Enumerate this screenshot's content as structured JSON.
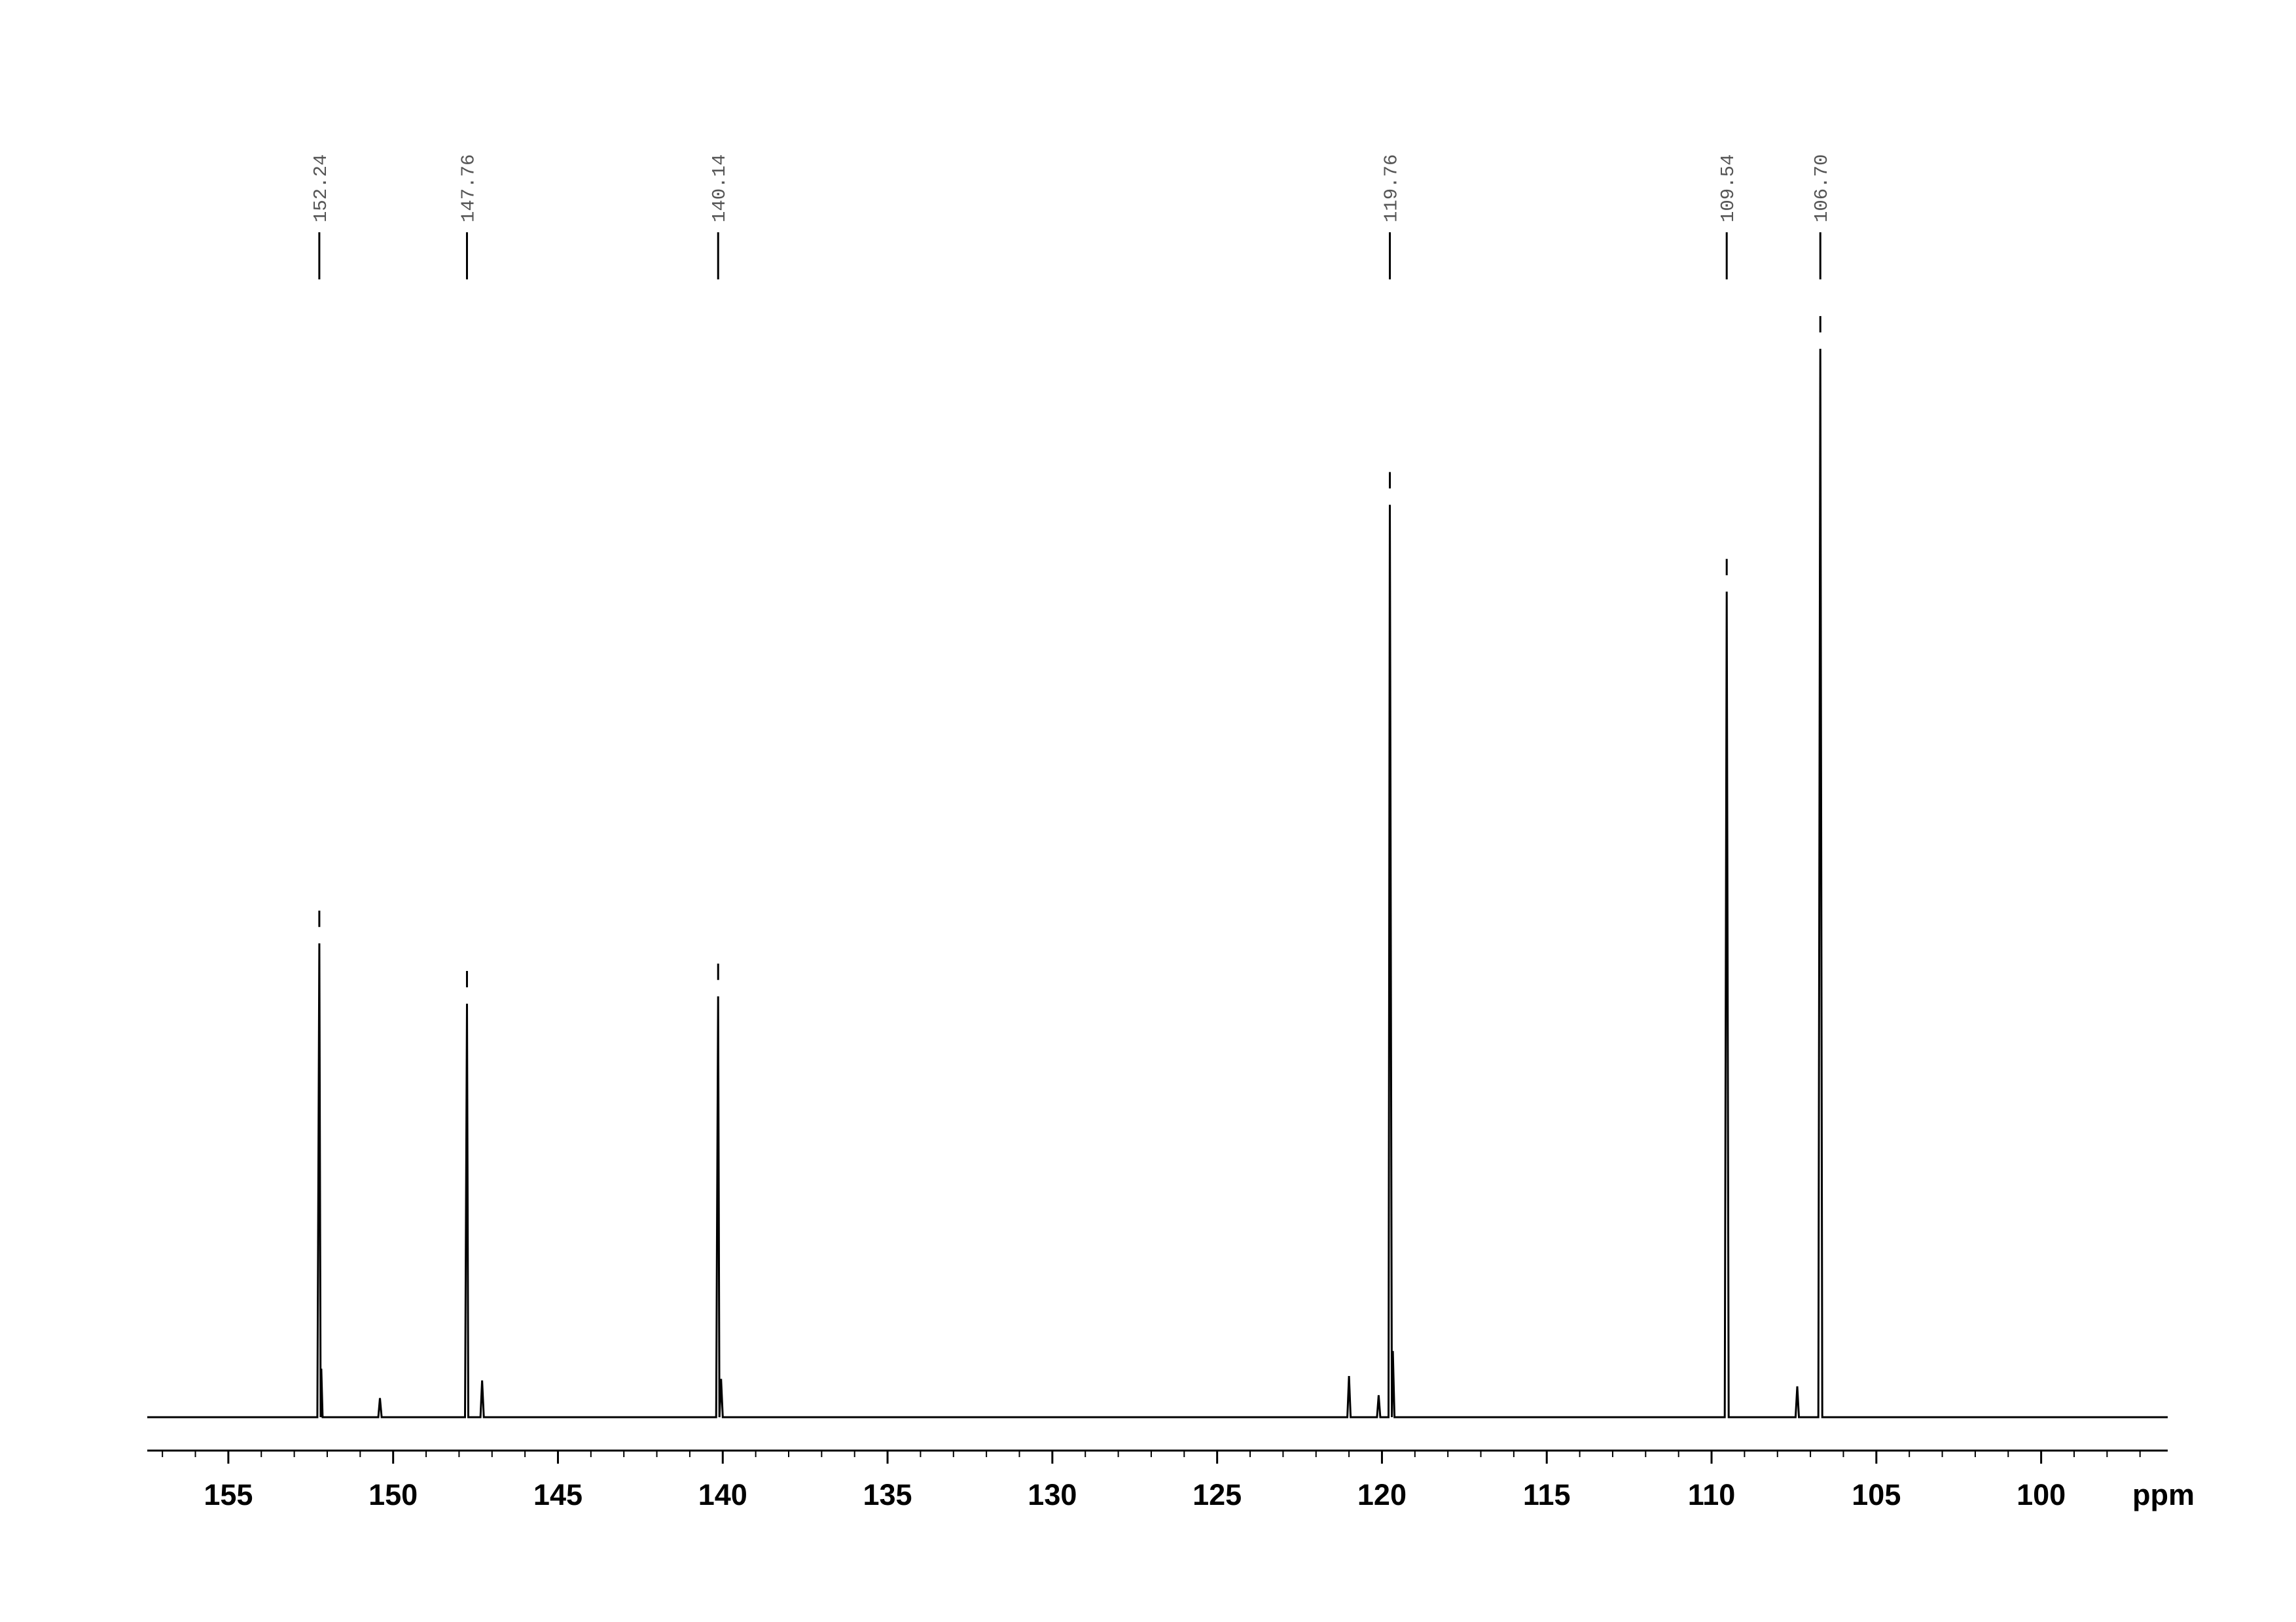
{
  "chart_data": {
    "type": "line",
    "xlabel": "ppm",
    "xlim": [
      157.46,
      96.16
    ],
    "xticks": [
      155,
      150,
      145,
      140,
      135,
      130,
      125,
      120,
      115,
      110,
      105,
      100
    ],
    "xminor_step": 1,
    "ylim": [
      0,
      963
    ],
    "color": "#000000",
    "peaks": [
      {
        "value": 152.24,
        "label": "152.24"
      },
      {
        "value": 147.76,
        "label": "147.76"
      },
      {
        "value": 140.14,
        "label": "140.14"
      },
      {
        "value": 119.76,
        "label": "119.76"
      },
      {
        "value": 109.54,
        "label": "109.54"
      },
      {
        "value": 106.7,
        "label": "106.70"
      }
    ],
    "x": [
      157.46,
      152.3,
      152.24,
      152.2,
      152.18,
      152.14,
      150.45,
      150.4,
      150.35,
      147.82,
      147.76,
      147.72,
      147.35,
      147.3,
      147.25,
      140.2,
      140.14,
      140.1,
      140.05,
      140.0,
      121.05,
      121.0,
      120.95,
      120.15,
      120.1,
      120.05,
      119.8,
      119.76,
      119.7,
      119.67,
      119.62,
      109.6,
      109.54,
      109.48,
      107.45,
      107.4,
      107.35,
      106.76,
      106.7,
      106.64,
      96.16
    ],
    "values": [
      0,
      0,
      322,
      0,
      33,
      0,
      0,
      13,
      0,
      0,
      281,
      0,
      0,
      25,
      0,
      0,
      286,
      0,
      26,
      0,
      0,
      28,
      0,
      0,
      15,
      0,
      0,
      620,
      0,
      45,
      0,
      0,
      561,
      0,
      0,
      21,
      0,
      0,
      726,
      0,
      0
    ]
  }
}
